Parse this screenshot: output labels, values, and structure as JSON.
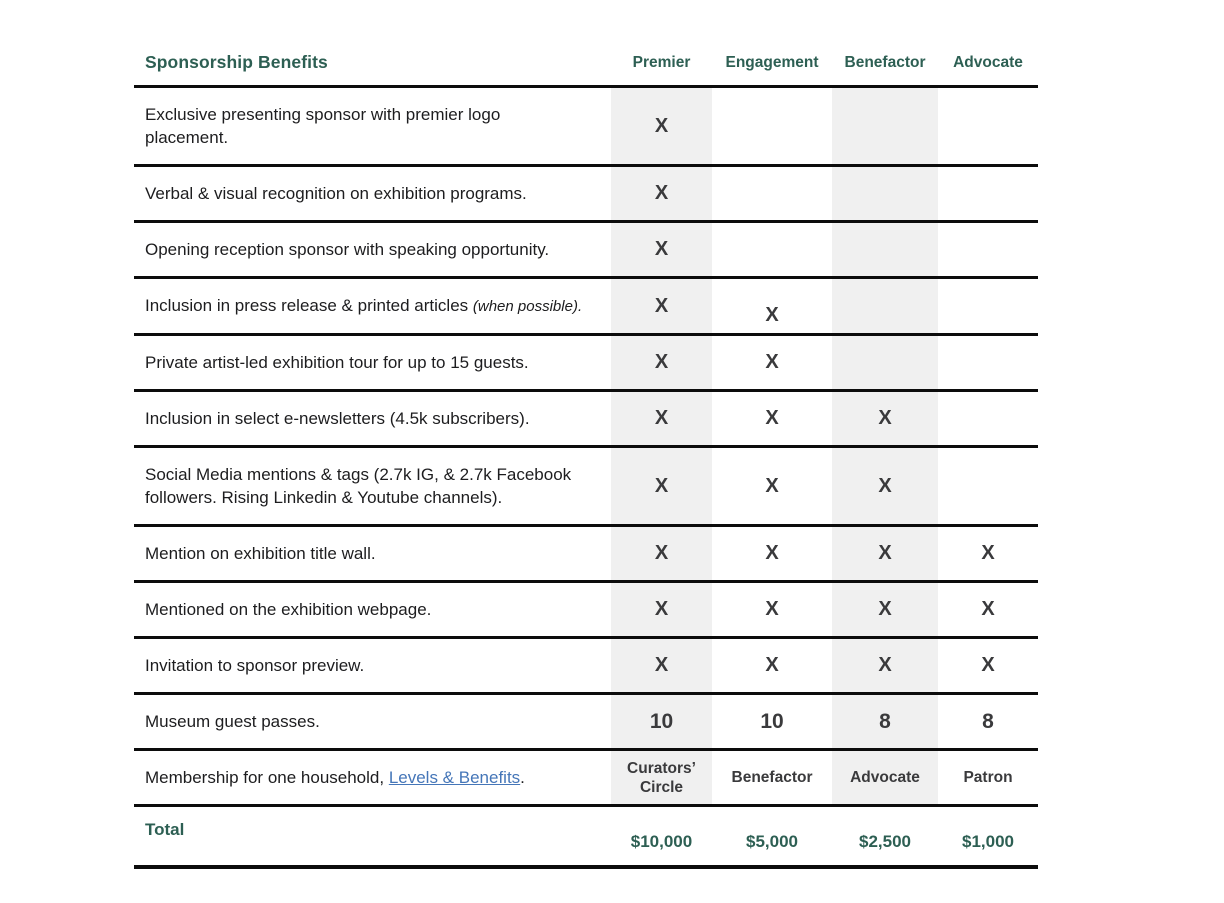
{
  "table": {
    "title": "Sponsorship Benefits",
    "columns": [
      "Premier",
      "Engagement",
      "Benefactor",
      "Advocate"
    ],
    "rows": [
      {
        "benefit": "Exclusive presenting sponsor with premier logo placement.",
        "cells": [
          "X",
          "",
          "",
          ""
        ]
      },
      {
        "benefit": "Verbal & visual recognition on exhibition programs.",
        "cells": [
          "X",
          "",
          "",
          ""
        ]
      },
      {
        "benefit": "Opening reception sponsor with speaking opportunity.",
        "cells": [
          "X",
          "",
          "",
          ""
        ]
      },
      {
        "benefit": "Inclusion in press release & printed articles ",
        "benefit_italic": "(when possible).",
        "cells": [
          "X",
          "X",
          "",
          ""
        ]
      },
      {
        "benefit": "Private artist-led exhibition tour for up to 15 guests.",
        "cells": [
          "X",
          "X",
          "",
          ""
        ]
      },
      {
        "benefit": "Inclusion in select e-newsletters (4.5k subscribers).",
        "cells": [
          "X",
          "X",
          "X",
          ""
        ]
      },
      {
        "benefit": "Social Media mentions & tags (2.7k IG, & 2.7k Facebook followers. Rising Linkedin & Youtube channels).",
        "cells": [
          "X",
          "X",
          "X",
          ""
        ]
      },
      {
        "benefit": "Mention on exhibition title wall.",
        "cells": [
          "X",
          "X",
          "X",
          "X"
        ]
      },
      {
        "benefit": "Mentioned on the exhibition webpage.",
        "cells": [
          "X",
          "X",
          "X",
          "X"
        ]
      },
      {
        "benefit": "Invitation to sponsor preview.",
        "cells": [
          "X",
          "X",
          "X",
          "X"
        ]
      },
      {
        "benefit": "Museum guest passes.",
        "cells": [
          "10",
          "10",
          "8",
          "8"
        ]
      },
      {
        "benefit_prefix": "Membership for one household, ",
        "link_text": "Levels & Benefits",
        "benefit_suffix": ".",
        "cells": [
          "Curators’ Circle",
          "Benefactor",
          "Advocate",
          "Patron"
        ]
      }
    ],
    "total": {
      "label": "Total",
      "values": [
        "$10,000",
        "$5,000",
        "$2,500",
        "$1,000"
      ]
    }
  },
  "colors": {
    "heading_teal": "#2d5f53",
    "mark_gray": "#3a3a3c",
    "body_text": "#1d1d1f",
    "column_band": "#f0f0f0",
    "rule_black": "#0c0c0c",
    "link_blue": "#4576b8"
  }
}
